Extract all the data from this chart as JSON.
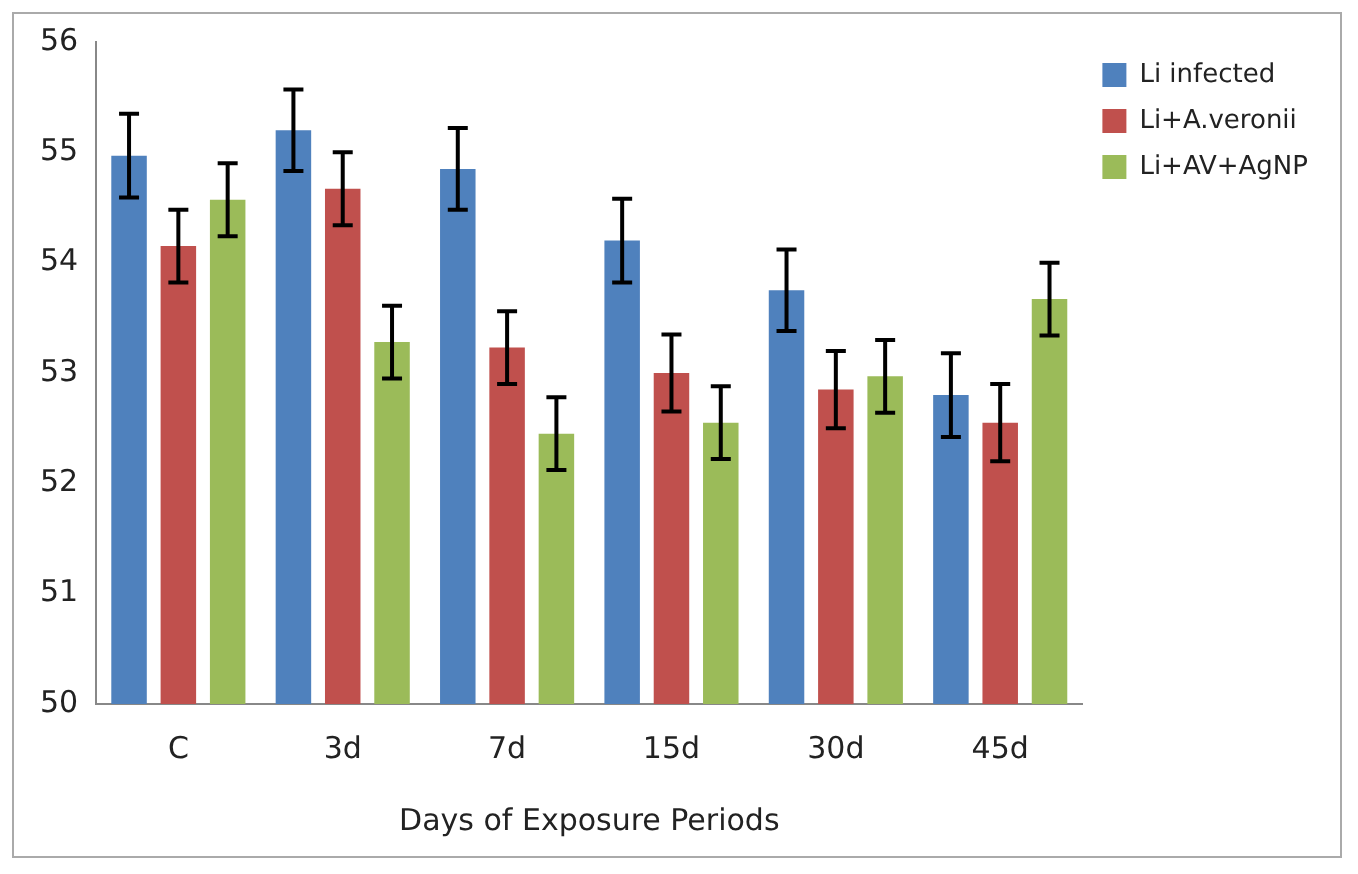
{
  "chart_data": {
    "type": "bar",
    "xlabel": "Days of Exposure Periods",
    "categories": [
      "C",
      "3d",
      "7d",
      "15d",
      "30d",
      "45d"
    ],
    "series": [
      {
        "name": "Li infected",
        "color": "#4f81bd",
        "values": [
          54.97,
          55.2,
          54.85,
          54.2,
          53.75,
          52.8
        ],
        "errors": [
          0.38,
          0.37,
          0.37,
          0.38,
          0.37,
          0.38
        ]
      },
      {
        "name": "Li+A.veronii",
        "color": "#c0504d",
        "values": [
          54.15,
          54.67,
          53.23,
          53.0,
          52.85,
          52.55
        ],
        "errors": [
          0.33,
          0.33,
          0.33,
          0.35,
          0.35,
          0.35
        ]
      },
      {
        "name": "Li+AV+AgNP",
        "color": "#9bbb59",
        "values": [
          54.57,
          53.28,
          52.45,
          52.55,
          52.97,
          53.67
        ],
        "errors": [
          0.33,
          0.33,
          0.33,
          0.33,
          0.33,
          0.33
        ]
      }
    ],
    "ylim": [
      50,
      56
    ],
    "yticks": [
      50,
      51,
      52,
      53,
      54,
      55,
      56
    ],
    "grid": false,
    "legend": "top right"
  }
}
